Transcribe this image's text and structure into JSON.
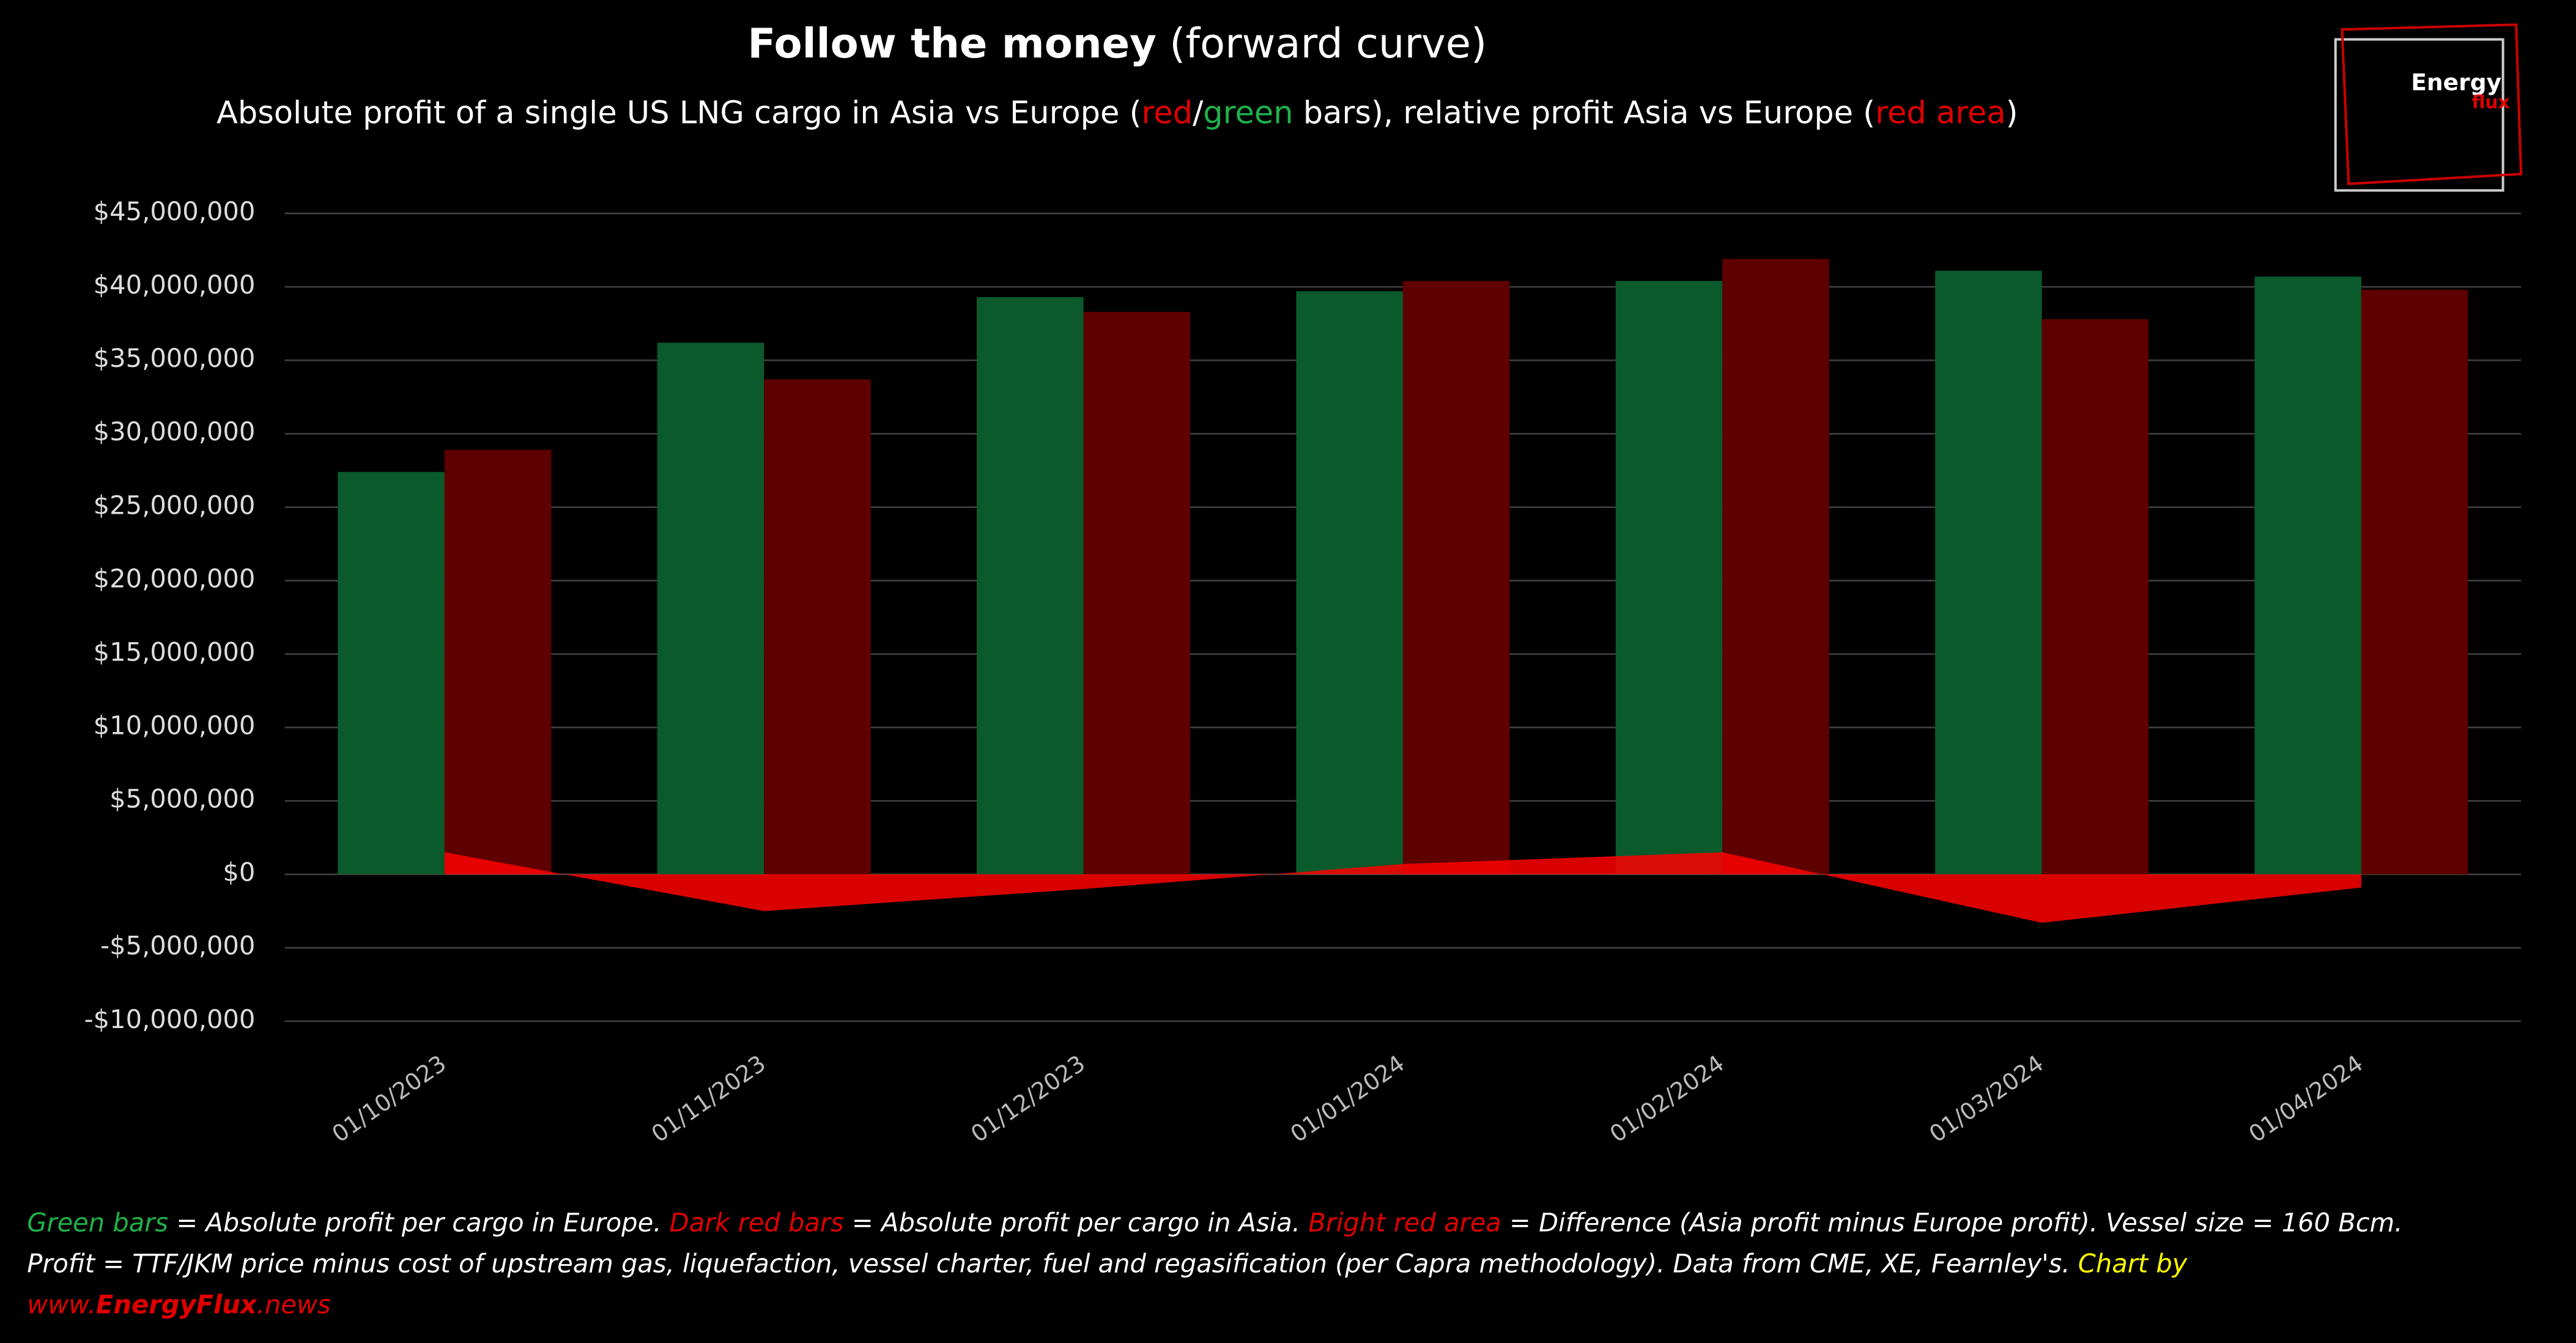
{
  "chart_data": {
    "type": "bar",
    "title_bold": "Follow the money",
    "title_rest": " (forward curve)",
    "subtitle_parts": [
      "Absolute profit of a single US LNG cargo in Asia vs Europe (",
      "red",
      "/",
      "green",
      " bars), relative profit Asia vs Europe (",
      "red area",
      ")"
    ],
    "categories": [
      "01/10/2023",
      "01/11/2023",
      "01/12/2023",
      "01/01/2024",
      "01/02/2024",
      "01/03/2024",
      "01/04/2024"
    ],
    "series": [
      {
        "color": "#0a5a2c",
        "values": [
          27400000,
          36200000,
          39300000,
          39700000,
          40400000,
          41100000,
          40700000
        ]
      },
      {
        "color": "#5e0000",
        "values": [
          28900000,
          33700000,
          38300000,
          40400000,
          41900000,
          37800000,
          39800000
        ]
      },
      {
        "type": "area",
        "color": "#ff0000",
        "values": [
          1500000,
          -2500000,
          -1000000,
          700000,
          1500000,
          -3300000,
          -900000
        ]
      }
    ],
    "ylim": [
      -10000000,
      45000000
    ],
    "yticks": [
      {
        "value": -10000000,
        "label": "-$10,000,000"
      },
      {
        "value": -5000000,
        "label": "-$5,000,000"
      },
      {
        "value": 0,
        "label": "$0"
      },
      {
        "value": 5000000,
        "label": "$5,000,000"
      },
      {
        "value": 10000000,
        "label": "$10,000,000"
      },
      {
        "value": 15000000,
        "label": "$15,000,000"
      },
      {
        "value": 20000000,
        "label": "$20,000,000"
      },
      {
        "value": 25000000,
        "label": "$25,000,000"
      },
      {
        "value": 30000000,
        "label": "$30,000,000"
      },
      {
        "value": 35000000,
        "label": "$35,000,000"
      },
      {
        "value": 40000000,
        "label": "$40,000,000"
      },
      {
        "value": 45000000,
        "label": "$45,000,000"
      }
    ],
    "grid": true,
    "logo": [
      "Energy",
      "flux"
    ],
    "footer": [
      [
        "Green bars",
        " = Absolute profit per cargo in Europe. ",
        "Dark red bars",
        " = Absolute profit per cargo in Asia. ",
        "Bright red area",
        " = Difference (Asia profit minus Europe profit). Vessel size = 160 Bcm."
      ],
      [
        "Profit = TTF/JKM price minus cost of upstream gas, liquefaction, vessel charter, fuel and regasification (per Capra methodology). Data from CME, XE, Fearnley's. ",
        "Chart by"
      ],
      [
        "www.",
        "EnergyFlux",
        ".news"
      ]
    ]
  }
}
